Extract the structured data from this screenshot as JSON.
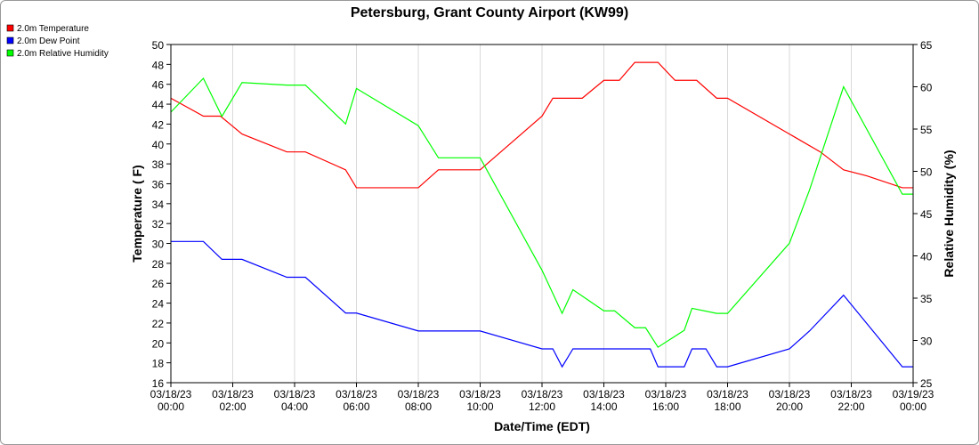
{
  "chart_data": {
    "type": "line",
    "title": "Petersburg, Grant County Airport (KW99)",
    "xlabel": "Date/Time (EDT)",
    "ylabel_left": "Temperature ( F)",
    "ylabel_right": "Relative Humidity (%)",
    "ylim_left": [
      16,
      50
    ],
    "ylim_right": [
      25,
      65
    ],
    "xlim_hours": [
      0,
      24
    ],
    "legend_placement": "top-left",
    "left_ticks": [
      "16",
      "18",
      "20",
      "22",
      "24",
      "26",
      "28",
      "30",
      "32",
      "34",
      "36",
      "38",
      "40",
      "42",
      "44",
      "46",
      "48",
      "50"
    ],
    "right_ticks": [
      "25",
      "30",
      "35",
      "40",
      "45",
      "50",
      "55",
      "60",
      "65"
    ],
    "x_ticks": [
      {
        "hour": 0,
        "date": "03/18/23",
        "time": "00:00"
      },
      {
        "hour": 2,
        "date": "03/18/23",
        "time": "02:00"
      },
      {
        "hour": 4,
        "date": "03/18/23",
        "time": "04:00"
      },
      {
        "hour": 6,
        "date": "03/18/23",
        "time": "06:00"
      },
      {
        "hour": 8,
        "date": "03/18/23",
        "time": "08:00"
      },
      {
        "hour": 10,
        "date": "03/18/23",
        "time": "10:00"
      },
      {
        "hour": 12,
        "date": "03/18/23",
        "time": "12:00"
      },
      {
        "hour": 14,
        "date": "03/18/23",
        "time": "14:00"
      },
      {
        "hour": 16,
        "date": "03/18/23",
        "time": "16:00"
      },
      {
        "hour": 18,
        "date": "03/18/23",
        "time": "18:00"
      },
      {
        "hour": 20,
        "date": "03/18/23",
        "time": "20:00"
      },
      {
        "hour": 22,
        "date": "03/18/23",
        "time": "22:00"
      },
      {
        "hour": 24,
        "date": "03/19/23",
        "time": "00:00"
      }
    ],
    "series": [
      {
        "name": "2.0m Temperature",
        "axis": "left",
        "color": "#ff0000",
        "points": [
          [
            0,
            44.6
          ],
          [
            1.05,
            42.8
          ],
          [
            1.6,
            42.8
          ],
          [
            2.3,
            41.0
          ],
          [
            3.75,
            39.2
          ],
          [
            4.35,
            39.2
          ],
          [
            5.65,
            37.4
          ],
          [
            6.0,
            35.6
          ],
          [
            8.0,
            35.6
          ],
          [
            8.65,
            37.4
          ],
          [
            10.0,
            37.4
          ],
          [
            12.0,
            42.8
          ],
          [
            12.35,
            44.6
          ],
          [
            13.3,
            44.6
          ],
          [
            14.0,
            46.4
          ],
          [
            14.5,
            46.4
          ],
          [
            15.0,
            48.2
          ],
          [
            15.75,
            48.2
          ],
          [
            16.3,
            46.4
          ],
          [
            17.0,
            46.4
          ],
          [
            17.65,
            44.6
          ],
          [
            18.0,
            44.6
          ],
          [
            20.0,
            41.0
          ],
          [
            21.0,
            39.2
          ],
          [
            21.75,
            37.4
          ],
          [
            22.5,
            36.8
          ],
          [
            23.65,
            35.6
          ],
          [
            24.0,
            35.6
          ]
        ]
      },
      {
        "name": "2.0m Dew Point",
        "axis": "left",
        "color": "#0000ff",
        "points": [
          [
            0,
            30.2
          ],
          [
            1.05,
            30.2
          ],
          [
            1.65,
            28.4
          ],
          [
            2.3,
            28.4
          ],
          [
            3.75,
            26.6
          ],
          [
            4.35,
            26.6
          ],
          [
            5.65,
            23.0
          ],
          [
            6.0,
            23.0
          ],
          [
            8.0,
            21.2
          ],
          [
            10.0,
            21.2
          ],
          [
            12.0,
            19.4
          ],
          [
            12.35,
            19.4
          ],
          [
            12.65,
            17.6
          ],
          [
            13.0,
            19.4
          ],
          [
            14.0,
            19.4
          ],
          [
            15.0,
            19.4
          ],
          [
            15.5,
            19.4
          ],
          [
            15.75,
            17.6
          ],
          [
            16.6,
            17.6
          ],
          [
            16.85,
            19.4
          ],
          [
            17.3,
            19.4
          ],
          [
            17.65,
            17.6
          ],
          [
            18.0,
            17.6
          ],
          [
            20.0,
            19.4
          ],
          [
            20.65,
            21.2
          ],
          [
            21.75,
            24.8
          ],
          [
            23.65,
            17.6
          ],
          [
            24.0,
            17.6
          ]
        ]
      },
      {
        "name": "2.0m Relative Humidity",
        "axis": "right",
        "color": "#00ff00",
        "points": [
          [
            0,
            57.0
          ],
          [
            1.05,
            61.0
          ],
          [
            1.65,
            56.5
          ],
          [
            2.3,
            60.5
          ],
          [
            3.75,
            60.2
          ],
          [
            4.35,
            60.2
          ],
          [
            5.65,
            55.6
          ],
          [
            6.0,
            59.8
          ],
          [
            8.0,
            55.4
          ],
          [
            8.65,
            51.6
          ],
          [
            10.0,
            51.6
          ],
          [
            12.0,
            38.3
          ],
          [
            12.65,
            33.2
          ],
          [
            13.0,
            36.0
          ],
          [
            14.0,
            33.5
          ],
          [
            14.35,
            33.5
          ],
          [
            15.0,
            31.5
          ],
          [
            15.35,
            31.5
          ],
          [
            15.75,
            29.2
          ],
          [
            16.6,
            31.2
          ],
          [
            16.85,
            33.8
          ],
          [
            17.65,
            33.2
          ],
          [
            18.0,
            33.2
          ],
          [
            20.0,
            41.5
          ],
          [
            20.65,
            47.8
          ],
          [
            21.75,
            60.0
          ],
          [
            23.65,
            47.3
          ],
          [
            24.0,
            47.3
          ]
        ]
      }
    ]
  }
}
